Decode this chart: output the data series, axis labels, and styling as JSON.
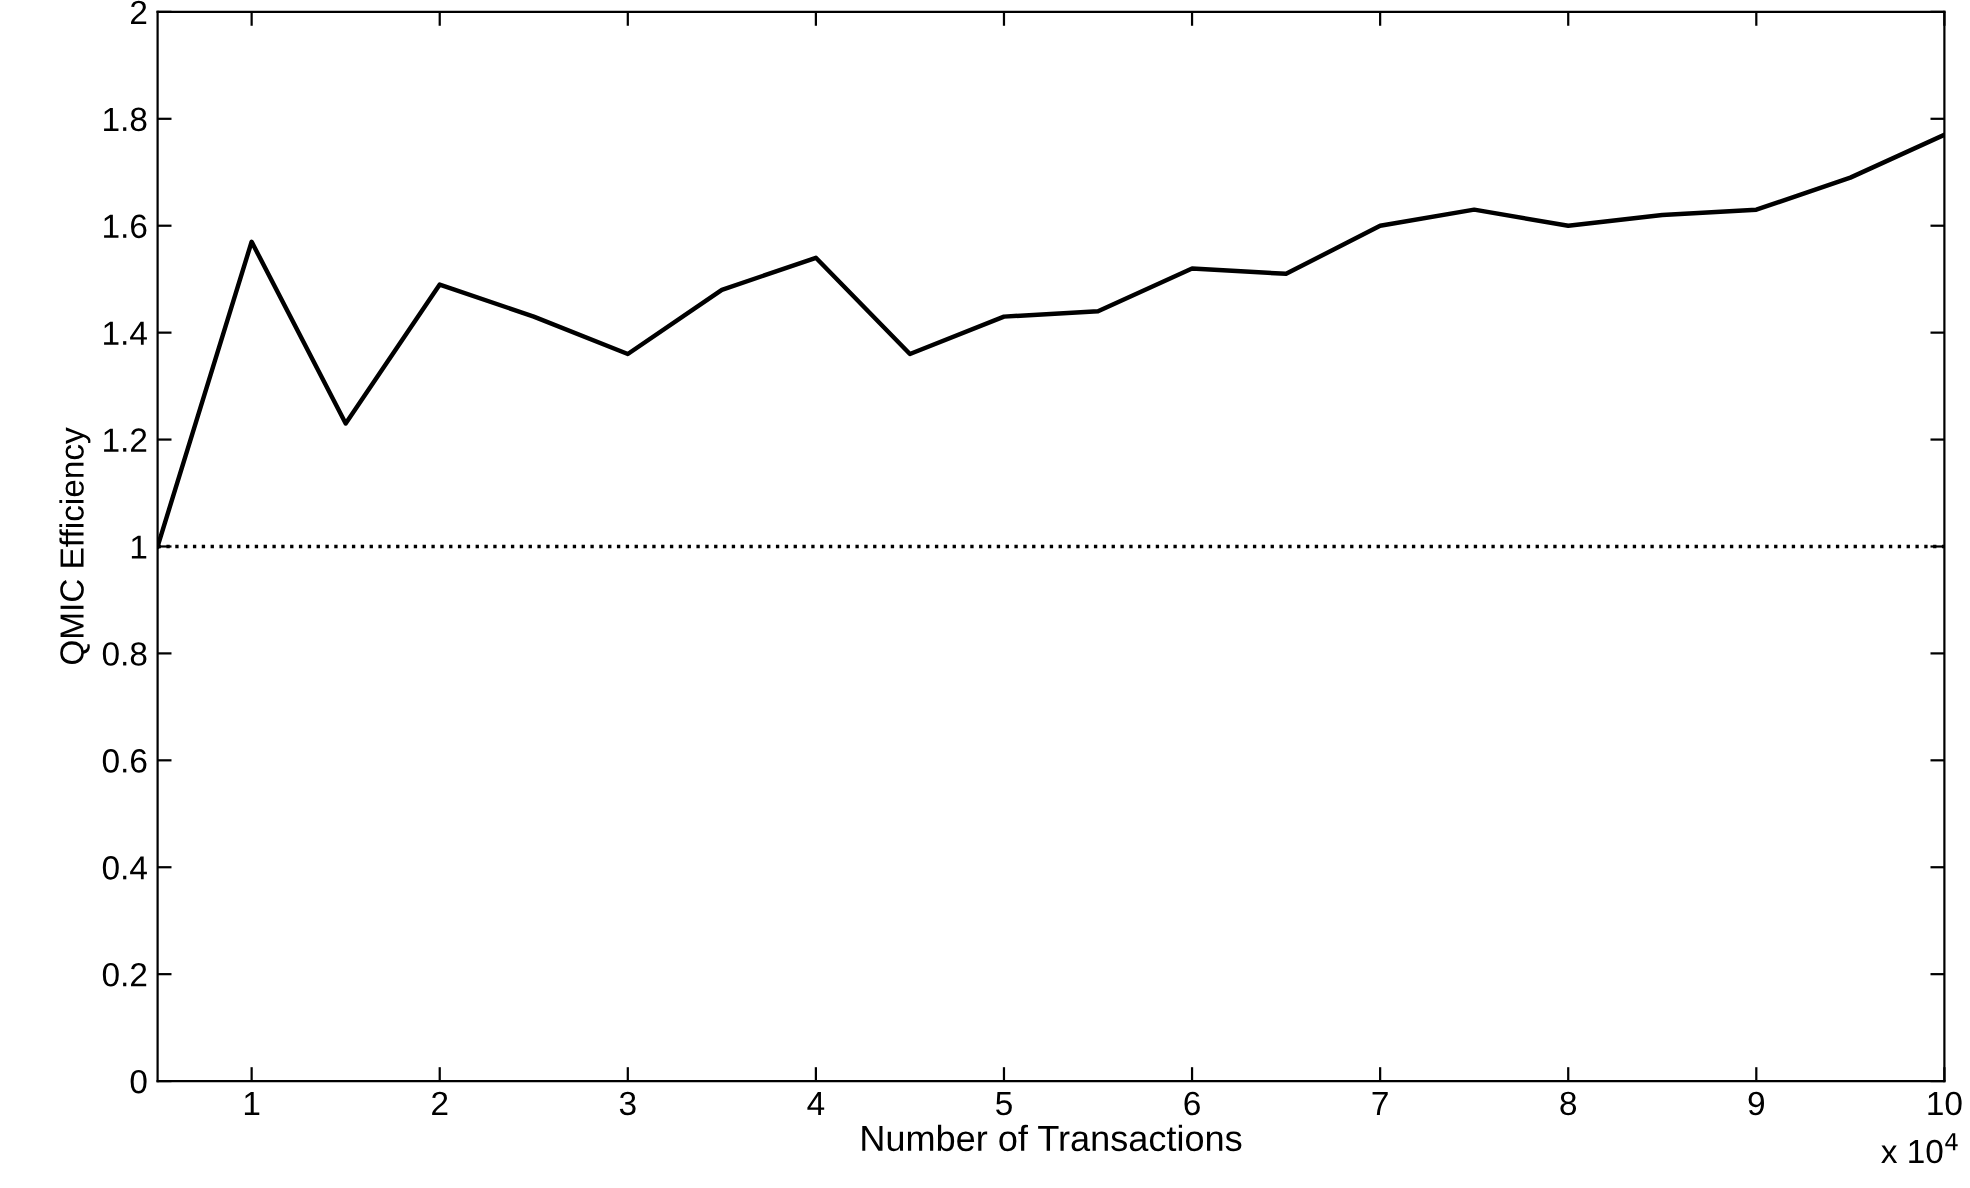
{
  "chart_data": {
    "type": "line",
    "xlabel": "Number of Transactions",
    "ylabel": "QMIC Efficiency",
    "annotations": [
      "x 10$^{4}$"
    ],
    "x": [
      0.5,
      1,
      1.5,
      2,
      2.5,
      3,
      3.5,
      4,
      4.5,
      5,
      5.5,
      6,
      6.5,
      7,
      7.5,
      8,
      8.5,
      9,
      9.5,
      10
    ],
    "series": [
      {
        "color": "#000000",
        "values": [
          1.0,
          1.57,
          1.23,
          1.49,
          1.43,
          1.36,
          1.48,
          1.54,
          1.36,
          1.43,
          1.44,
          1.52,
          1.51,
          1.6,
          1.63,
          1.6,
          1.62,
          1.63,
          1.69,
          1.77
        ]
      }
    ],
    "ref_lines": [
      {
        "axis": "y",
        "value": 1,
        "color": "#000000",
        "line_style": "dotted"
      }
    ],
    "xlim": [
      0.5,
      10
    ],
    "xticks": [
      1,
      2,
      3,
      4,
      5,
      6,
      7,
      8,
      9,
      10
    ],
    "ylim": [
      0,
      2
    ],
    "yticks": [
      0,
      0.2,
      0.4,
      0.6,
      0.8,
      1,
      1.2,
      1.4,
      1.6,
      1.8,
      2
    ],
    "grid": false,
    "legend": false,
    "marker": "none",
    "line_style": "solid"
  }
}
